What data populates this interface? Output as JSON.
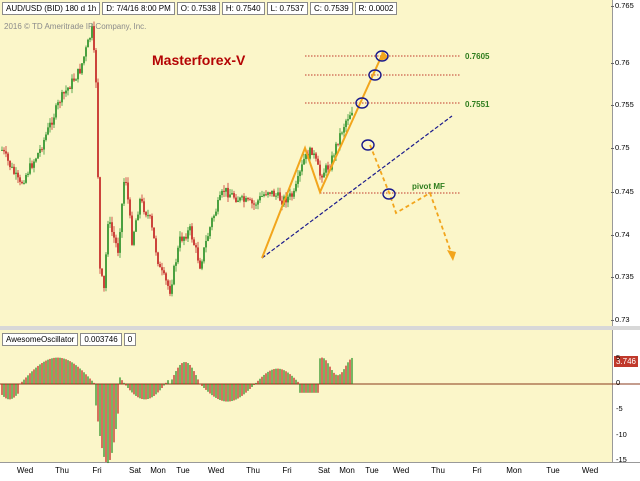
{
  "header": {
    "symbol": "AUD/USD (BID) 180 d 1h",
    "date": "D: 7/4/16 8:00 PM",
    "open": "O: 0.7538",
    "high": "H: 0.7540",
    "low": "L: 0.7537",
    "close": "C: 0.7539",
    "range": "R: 0.0002"
  },
  "copyright": "2016 © TD Ameritrade IP Company, Inc.",
  "brand": "Masterforex-V",
  "annotations": {
    "level_top": "0.7605",
    "level_mid": "0.7551",
    "pivot": "pivot MF"
  },
  "price_axis": [
    "0.765",
    "0.76",
    "0.755",
    "0.75",
    "0.745",
    "0.74",
    "0.735",
    "0.73"
  ],
  "oscillator": {
    "name": "AwesomeOscillator",
    "value": "0.003746",
    "zero": "0",
    "badge": "3.746",
    "axis": [
      "5",
      "0",
      "-5",
      "-10",
      "-15"
    ]
  },
  "time_axis": [
    "Wed",
    "Thu",
    "Fri",
    "Sat",
    "Mon",
    "Tue",
    "Wed",
    "Thu",
    "Fri",
    "Sat",
    "Mon",
    "Tue",
    "Wed",
    "Thu",
    "Fri",
    "Mon",
    "Tue",
    "Wed"
  ],
  "colors": {
    "plot_bg": "#fbf6c9",
    "candle_up": "#1f8b1f",
    "candle_down": "#c01818",
    "projection": "#f2a51c",
    "trendline": "#1a1a8c",
    "level": "#c0392b"
  }
}
